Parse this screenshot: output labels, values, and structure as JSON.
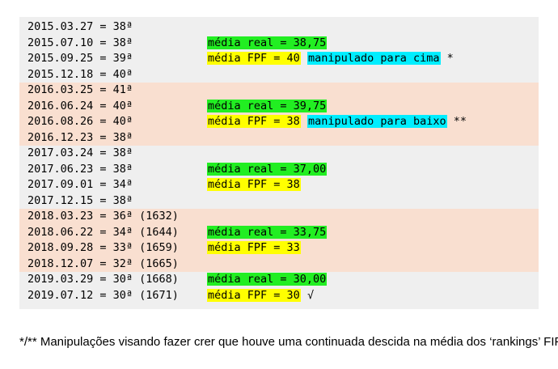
{
  "rows": [
    {
      "date": "2015.03.27 = 38ª",
      "bg": "plain",
      "notes": []
    },
    {
      "date": "2015.07.10 = 38ª",
      "bg": "plain",
      "notes": [
        {
          "text": "média real = 38,75",
          "color": "green"
        }
      ]
    },
    {
      "date": "2015.09.25 = 39ª",
      "bg": "plain",
      "notes": [
        {
          "text": "média FPF = 40",
          "color": "yellow"
        },
        {
          "text": "manipulado para cima",
          "color": "cyan"
        },
        {
          "text": "*",
          "color": "none"
        }
      ]
    },
    {
      "date": "2015.12.18 = 40ª",
      "bg": "plain",
      "notes": []
    },
    {
      "date": "2016.03.25 = 41ª",
      "bg": "alt",
      "notes": []
    },
    {
      "date": "2016.06.24 = 40ª",
      "bg": "alt",
      "notes": [
        {
          "text": "média real = 39,75",
          "color": "green"
        }
      ]
    },
    {
      "date": "2016.08.26 = 40ª",
      "bg": "alt",
      "notes": [
        {
          "text": "média FPF = 38",
          "color": "yellow"
        },
        {
          "text": "manipulado para baixo",
          "color": "cyan"
        },
        {
          "text": "**",
          "color": "none"
        }
      ]
    },
    {
      "date": "2016.12.23 = 38ª",
      "bg": "alt",
      "notes": []
    },
    {
      "date": "2017.03.24 = 38ª",
      "bg": "plain",
      "notes": []
    },
    {
      "date": "2017.06.23 = 38ª",
      "bg": "plain",
      "notes": [
        {
          "text": "média real = 37,00",
          "color": "green"
        }
      ]
    },
    {
      "date": "2017.09.01 = 34ª",
      "bg": "plain",
      "notes": [
        {
          "text": "média FPF = 38",
          "color": "yellow"
        }
      ]
    },
    {
      "date": "2017.12.15 = 38ª",
      "bg": "plain",
      "notes": []
    },
    {
      "date": "2018.03.23 = 36ª (1632)",
      "bg": "alt",
      "notes": []
    },
    {
      "date": "2018.06.22 = 34ª (1644)",
      "bg": "alt",
      "notes": [
        {
          "text": "média real = 33,75",
          "color": "green"
        }
      ]
    },
    {
      "date": "2018.09.28 = 33ª (1659)",
      "bg": "alt",
      "notes": [
        {
          "text": "média FPF = 33",
          "color": "yellow"
        }
      ]
    },
    {
      "date": "2018.12.07 = 32ª (1665)",
      "bg": "alt",
      "notes": []
    },
    {
      "date": "2019.03.29 = 30ª (1668)",
      "bg": "plain",
      "notes": [
        {
          "text": "média real = 30,00",
          "color": "green"
        }
      ]
    },
    {
      "date": "2019.07.12 = 30ª (1671)",
      "bg": "plain",
      "notes": [
        {
          "text": "média FPF = 30",
          "color": "yellow"
        },
        {
          "text": "√",
          "color": "none"
        }
      ]
    }
  ],
  "footnote": "*/** Manipulações visando fazer crer que houve uma continuada descida na média dos ‘rankings’ FIFA",
  "colors": {
    "green": "#22ee22",
    "yellow": "#ffff00",
    "cyan": "#00eeff",
    "alt_row": "#f9dfd0",
    "panel": "#efefef"
  }
}
